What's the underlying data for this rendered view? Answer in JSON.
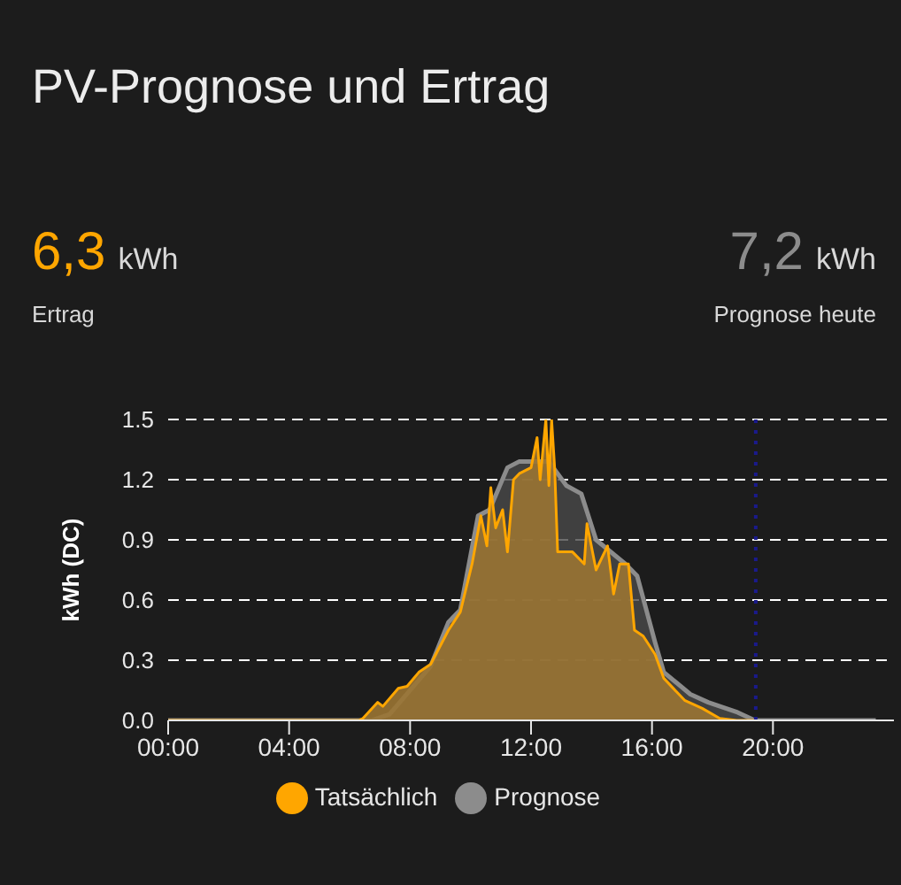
{
  "chart_data": {
    "type": "area",
    "title": "PV-Prognose und Ertrag",
    "annotations": [
      "6,3",
      "kWh",
      "Ertrag",
      "7,2",
      "kWh",
      "Prognose heute"
    ],
    "ylabel": "kWh (DC)",
    "xlim": [
      0,
      24
    ],
    "xticks": [
      {
        "value": 0,
        "label": "00:00"
      },
      {
        "value": 4,
        "label": "04:00"
      },
      {
        "value": 8,
        "label": "08:00"
      },
      {
        "value": 12,
        "label": "12:00"
      },
      {
        "value": 16,
        "label": "16:00"
      },
      {
        "value": 20,
        "label": "20:00"
      }
    ],
    "ylim": [
      0,
      1.5
    ],
    "yticks": [
      {
        "value": 0,
        "label": "0.0"
      },
      0.3,
      0.6,
      0.9,
      1.2,
      1.5
    ],
    "grid": "y",
    "legend": "bottom",
    "marker": "none",
    "ref_lines": [
      {
        "axis": "x",
        "value": 19.43,
        "color": "#1a1a8c",
        "line_style": "dotted"
      }
    ],
    "series": [
      {
        "name": "Tatsächlich",
        "color": "#ffa600",
        "x": [
          0,
          6.3,
          6.44,
          6.93,
          7.1,
          7.61,
          7.9,
          8.29,
          8.68,
          9.27,
          9.66,
          10.05,
          10.34,
          10.54,
          10.67,
          10.83,
          11.06,
          11.22,
          11.42,
          11.61,
          12,
          12.2,
          12.3,
          12.49,
          12.59,
          12.68,
          12.78,
          12.88,
          13.37,
          13.76,
          13.85,
          14.15,
          14.53,
          14.73,
          14.93,
          15.22,
          15.42,
          15.71,
          16.1,
          16.39,
          17.08,
          17.66,
          18.24,
          18.8,
          19.43
        ],
        "values": [
          0,
          0,
          0.01,
          0.09,
          0.07,
          0.16,
          0.17,
          0.24,
          0.28,
          0.45,
          0.54,
          0.78,
          1.02,
          0.87,
          1.16,
          0.96,
          1.05,
          0.84,
          1.2,
          1.23,
          1.26,
          1.41,
          1.2,
          1.5,
          1.17,
          1.5,
          1.26,
          0.84,
          0.84,
          0.78,
          0.98,
          0.75,
          0.87,
          0.63,
          0.78,
          0.78,
          0.45,
          0.42,
          0.33,
          0.21,
          0.1,
          0.06,
          0.01,
          0,
          0
        ]
      },
      {
        "name": "Prognose",
        "color": "#8c8c8c",
        "x": [
          0,
          6.73,
          7.32,
          8.68,
          9.27,
          9.66,
          10.25,
          10.63,
          11.22,
          11.6,
          12.59,
          13.17,
          13.66,
          14.15,
          15.12,
          15.51,
          16.1,
          16.39,
          17.27,
          17.86,
          18.83,
          19.4,
          23.4
        ],
        "values": [
          0,
          0,
          0.03,
          0.27,
          0.49,
          0.55,
          1.02,
          1.05,
          1.26,
          1.29,
          1.29,
          1.17,
          1.13,
          0.9,
          0.78,
          0.72,
          0.39,
          0.24,
          0.13,
          0.09,
          0.04,
          0,
          0
        ]
      }
    ]
  }
}
